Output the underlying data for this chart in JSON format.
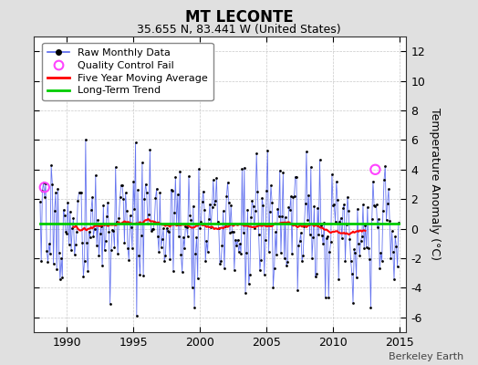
{
  "title": "MT LECONTE",
  "subtitle": "35.655 N, 83.441 W (United States)",
  "ylabel": "Temperature Anomaly (°C)",
  "watermark": "Berkeley Earth",
  "ylim": [
    -7,
    13
  ],
  "yticks": [
    -6,
    -4,
    -2,
    0,
    2,
    4,
    6,
    8,
    10,
    12
  ],
  "xlim": [
    1987.5,
    2015.5
  ],
  "xticks": [
    1990,
    1995,
    2000,
    2005,
    2010,
    2015
  ],
  "fig_bg_color": "#e0e0e0",
  "plot_bg_color": "#ffffff",
  "raw_line_color": "#5566ee",
  "raw_dot_color": "#000000",
  "ma_color": "#ff0000",
  "trend_color": "#00cc00",
  "qc_fail_color": "#ff44ff",
  "n_years": 27,
  "start_year": 1988,
  "qc_fail_points": [
    [
      1988.33,
      2.8
    ],
    [
      2013.17,
      4.0
    ]
  ]
}
